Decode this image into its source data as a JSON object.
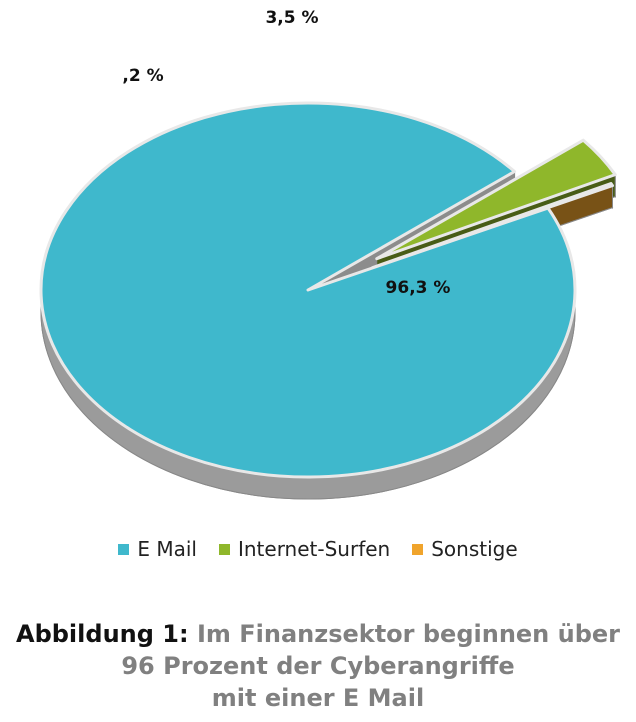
{
  "chart_data": {
    "type": "pie",
    "style": "3d-exploded",
    "categories": [
      "E Mail",
      "Internet-Surfen",
      "Sonstige"
    ],
    "values": [
      96.3,
      3.5,
      0.2
    ],
    "labels": [
      "96,3 %",
      "3,5 %",
      ",2 %"
    ],
    "colors": [
      "#3fb8cc",
      "#8fb72b",
      "#f0a42c"
    ],
    "legend_position": "bottom"
  },
  "caption": {
    "lead": "Abbildung 1:",
    "line1": "Im Finanzsektor beginnen über",
    "line2": "96 Prozent der Cyberangriffe",
    "line3": "mit einer E Mail"
  }
}
